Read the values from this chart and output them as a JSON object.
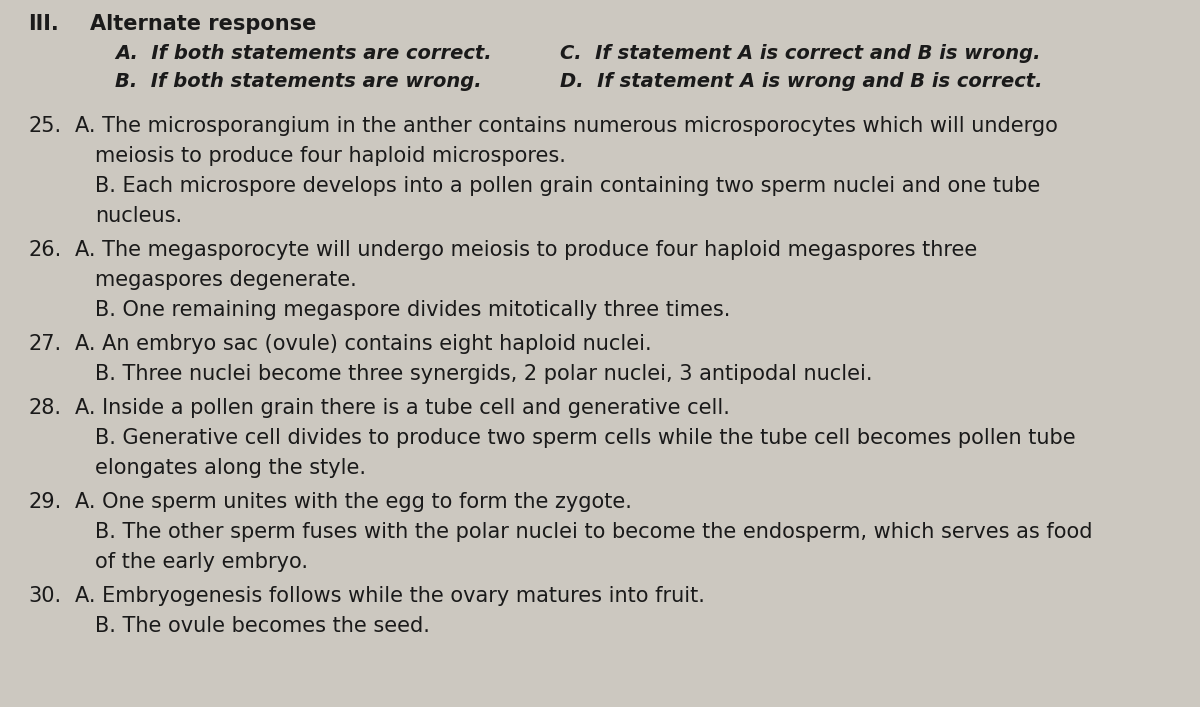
{
  "background_color": "#ccc8c0",
  "text_color": "#1a1a1a",
  "figsize": [
    12.0,
    7.07
  ],
  "dpi": 100,
  "header_roman": "III.",
  "header_title": "Alternate response",
  "choices_left": [
    "A.  If both statements are correct.",
    "B.  If both statements are wrong."
  ],
  "choices_right": [
    "C.  If statement A is correct and B is wrong.",
    "D.  If statement A is wrong and B is correct."
  ],
  "questions": [
    {
      "number": "25.",
      "partA_line1": "A. The microsporangium in the anther contains numerous microsporocytes which will undergo",
      "partA_line2": "meiosis to produce four haploid microspores.",
      "partB_line1": "B. Each microspore develops into a pollen grain containing two sperm nuclei and one tube",
      "partB_line2": "nucleus."
    },
    {
      "number": "26.",
      "partA_line1": "A. The megasporocyte will undergo meiosis to produce four haploid megaspores three",
      "partA_line2": "megaspores degenerate.",
      "partB_line1": "B. One remaining megaspore divides mitotically three times.",
      "partB_line2": null
    },
    {
      "number": "27.",
      "partA_line1": "A. An embryo sac (ovule) contains eight haploid nuclei.",
      "partA_line2": null,
      "partB_line1": "B. Three nuclei become three synergids, 2 polar nuclei, 3 antipodal nuclei.",
      "partB_line2": null
    },
    {
      "number": "28.",
      "partA_line1": "A. Inside a pollen grain there is a tube cell and generative cell.",
      "partA_line2": null,
      "partB_line1": "B. Generative cell divides to produce two sperm cells while the tube cell becomes pollen tube",
      "partB_line2": "elongates along the style."
    },
    {
      "number": "29.",
      "partA_line1": "A. One sperm unites with the egg to form the zygote.",
      "partA_line2": null,
      "partB_line1": "B. The other sperm fuses with the polar nuclei to become the endosperm, which serves as food",
      "partB_line2": "of the early embryo."
    },
    {
      "number": "30.",
      "partA_line1": "A. Embryogenesis follows while the ovary matures into fruit.",
      "partA_line2": null,
      "partB_line1": "B. The ovule becomes the seed.",
      "partB_line2": null
    }
  ]
}
